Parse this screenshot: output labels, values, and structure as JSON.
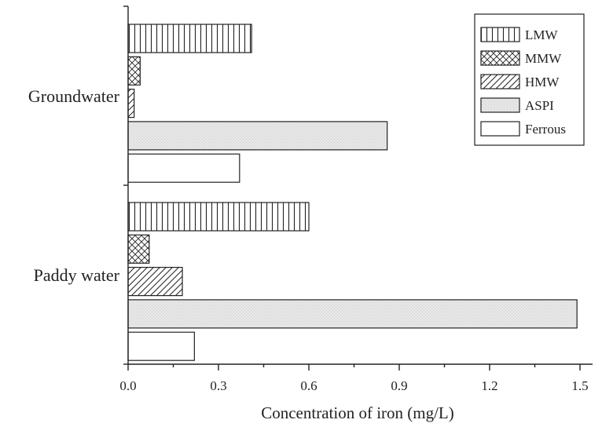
{
  "chart_data": {
    "type": "bar",
    "orientation": "horizontal",
    "categories": [
      "Groundwater",
      "Paddy water"
    ],
    "series": [
      {
        "name": "LMW",
        "values": [
          0.41,
          0.6
        ],
        "pattern": "vertical-lines"
      },
      {
        "name": "MMW",
        "values": [
          0.04,
          0.07
        ],
        "pattern": "crosshatch"
      },
      {
        "name": "HMW",
        "values": [
          0.02,
          0.18
        ],
        "pattern": "diagonal-lines"
      },
      {
        "name": "ASPI",
        "values": [
          0.86,
          1.49
        ],
        "pattern": "light-gray"
      },
      {
        "name": "Ferrous",
        "values": [
          0.37,
          0.22
        ],
        "pattern": "white"
      }
    ],
    "xlabel": "Concentration of iron (mg/L)",
    "ylabel": "",
    "xlim": [
      0.0,
      1.55
    ],
    "xticks": [
      "0.0",
      "0.3",
      "0.6",
      "0.9",
      "1.2",
      "1.5"
    ],
    "xtick_values": [
      0.0,
      0.3,
      0.6,
      0.9,
      1.2,
      1.5
    ],
    "legend_position": "top-right",
    "grid": false
  }
}
